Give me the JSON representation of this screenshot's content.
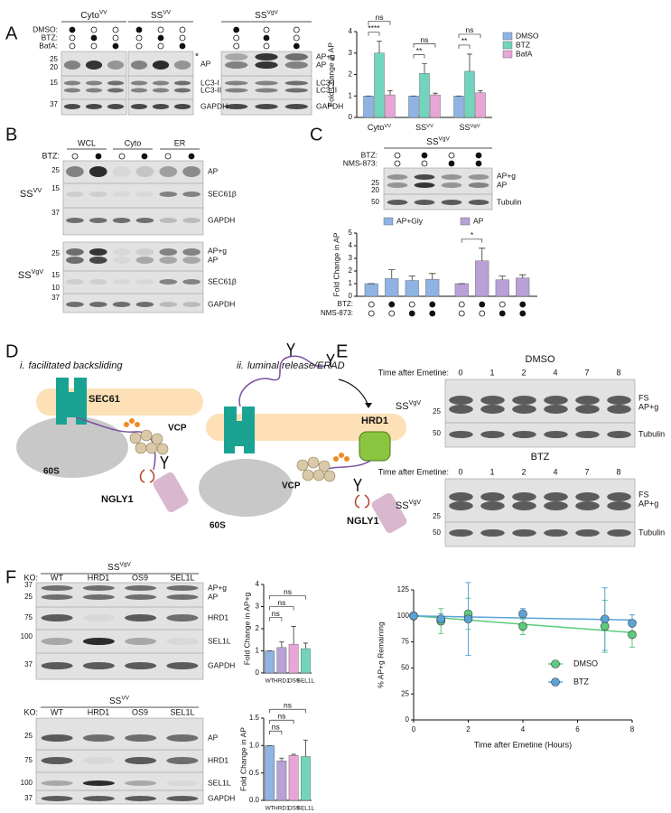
{
  "panel_labels": [
    "A",
    "B",
    "C",
    "D",
    "E",
    "F"
  ],
  "panel_a": {
    "groups": [
      {
        "name": "Cyto",
        "sup": "VV"
      },
      {
        "name": "SS",
        "sup": "VV"
      },
      {
        "name": "SS",
        "sup": "VgV"
      }
    ],
    "treatments": [
      {
        "label": "DMSO:",
        "on": [
          true,
          false,
          false,
          true,
          false,
          false,
          true,
          false,
          false
        ]
      },
      {
        "label": "BTZ:",
        "on": [
          false,
          true,
          false,
          false,
          true,
          false,
          false,
          true,
          false
        ]
      },
      {
        "label": "BafA:",
        "on": [
          false,
          false,
          true,
          false,
          false,
          true,
          false,
          false,
          true
        ]
      }
    ],
    "mw": [
      "25",
      "20",
      "15",
      "37"
    ],
    "star": "*",
    "bands_left": [
      "AP",
      "LC3-I",
      "LC3-II",
      "GAPDH"
    ],
    "bands_right": [
      "AP+g",
      "AP",
      "LC3-I",
      "LC3-II",
      "GAPDH"
    ]
  },
  "panel_b": {
    "fractions": [
      "WCL",
      "Cyto",
      "ER"
    ],
    "treatment": {
      "label": "BTZ:",
      "on": [
        false,
        true,
        false,
        true,
        false,
        true
      ]
    },
    "blots": [
      {
        "name": "SS",
        "sup": "VV",
        "mw": [
          "25",
          "15",
          "37"
        ],
        "bands": [
          "AP",
          "SEC61β",
          "GAPDH"
        ]
      },
      {
        "name": "SS",
        "sup": "VgV",
        "mw": [
          "25",
          "15",
          "10",
          "37"
        ],
        "bands": [
          "AP+g",
          "AP",
          "SEC61β",
          "GAPDH"
        ]
      }
    ]
  },
  "panel_c": {
    "title": {
      "name": "SS",
      "sup": "VgV"
    },
    "treatments": [
      {
        "label": "BTZ:",
        "on": [
          false,
          true,
          false,
          true
        ]
      },
      {
        "label": "NMS-873:",
        "on": [
          false,
          false,
          true,
          true
        ]
      }
    ],
    "mw": [
      "25",
      "20",
      "50"
    ],
    "bands": [
      "AP+g",
      "AP",
      "Tubulin"
    ]
  },
  "panel_d": {
    "titles": [
      {
        "num": "i.",
        "text": "facilitated backsliding"
      },
      {
        "num": "ii.",
        "text": "luminal release/ERAD"
      }
    ],
    "left": {
      "channel": "SEC61",
      "vcp": "VCP",
      "ribosome": "60S",
      "enzyme": "NGLY1"
    },
    "right": {
      "ligase": "HRD1",
      "vcp": "VCP",
      "ribosome": "60S",
      "enzyme": "NGLY1"
    }
  },
  "panel_e": {
    "blots": [
      {
        "condition": "DMSO",
        "time_label": "Time after Emetine:",
        "times": [
          "0",
          "1",
          "2",
          "4",
          "7",
          "8"
        ],
        "mw": [
          "25",
          "50"
        ],
        "bands": [
          "FS",
          "AP+g",
          "Tubulin"
        ],
        "sample": {
          "name": "SS",
          "sup": "VgV"
        }
      },
      {
        "condition": "BTZ",
        "time_label": "Time after Emetine:",
        "times": [
          "0",
          "1",
          "2",
          "4",
          "7",
          "8"
        ],
        "mw": [
          "25",
          "50"
        ],
        "bands": [
          "FS",
          "AP+g",
          "Tubulin"
        ],
        "sample": {
          "name": "SS",
          "sup": "VgV"
        }
      }
    ]
  },
  "panel_f": {
    "blots": [
      {
        "title": {
          "name": "SS",
          "sup": "VgV"
        },
        "ko_label": "KO:",
        "lanes": [
          "WT",
          "HRD1",
          "OS9",
          "SEL1L"
        ],
        "mw": [
          "37",
          "25",
          "75",
          "100",
          "37"
        ],
        "bands": [
          "AP+g",
          "AP",
          "HRD1",
          "SEL1L",
          "GAPDH"
        ]
      },
      {
        "title": {
          "name": "SS",
          "sup": "VV"
        },
        "ko_label": "KO:",
        "lanes": [
          "WT",
          "HRD1",
          "OS9",
          "SEL1L"
        ],
        "mw": [
          "25",
          "75",
          "100",
          "37"
        ],
        "bands": [
          "AP",
          "HRD1",
          "SEL1L",
          "GAPDH"
        ]
      }
    ]
  },
  "chart_data": [
    {
      "type": "bar",
      "ylabel": "Fold Change in AP",
      "categories": [
        "Cyto",
        "SS",
        "SS"
      ],
      "category_superscripts": [
        "VV",
        "VV",
        "VgV"
      ],
      "series": [
        {
          "name": "DMSO",
          "color": "#8fb4e3",
          "values": [
            1,
            1,
            1
          ],
          "errors": [
            0,
            0,
            0
          ]
        },
        {
          "name": "BTZ",
          "color": "#72d4bc",
          "values": [
            3.0,
            2.05,
            2.15
          ],
          "errors": [
            0.55,
            0.45,
            0.8
          ],
          "significance": [
            "****",
            "**",
            "**"
          ]
        },
        {
          "name": "BafA",
          "color": "#e7a6d6",
          "values": [
            1.05,
            1.05,
            1.15
          ],
          "errors": [
            0.2,
            0.08,
            0.1
          ],
          "significance": [
            "ns",
            "ns",
            "ns"
          ]
        }
      ],
      "ylim": [
        0,
        4
      ],
      "yticks": [
        0,
        1,
        2,
        3,
        4
      ],
      "legend": "right"
    },
    {
      "type": "bar",
      "ylabel": "Fold Change in AP",
      "series": [
        {
          "name": "AP+Gly",
          "color": "#8fb4e3",
          "values": [
            1,
            1.4,
            1.25,
            1.35
          ],
          "errors": [
            0,
            0.7,
            0.35,
            0.45
          ]
        },
        {
          "name": "AP",
          "color": "#b9a0d6",
          "values": [
            1,
            2.8,
            1.3,
            1.45
          ],
          "errors": [
            0,
            1.0,
            0.3,
            0.25
          ],
          "significance": [
            null,
            "*",
            null,
            null
          ]
        }
      ],
      "treatments": [
        {
          "label": "BTZ:",
          "on": [
            false,
            true,
            false,
            true,
            false,
            true,
            false,
            true
          ]
        },
        {
          "label": "NMS-873:",
          "on": [
            false,
            false,
            true,
            true,
            false,
            false,
            true,
            true
          ]
        }
      ],
      "ylim": [
        0,
        5
      ],
      "yticks": [
        0,
        1,
        2,
        3,
        4,
        5
      ],
      "legend": "top"
    },
    {
      "type": "scatter",
      "xlabel": "Time after Emetine (Hours)",
      "ylabel": "% AP+g Remaining",
      "x": [
        0,
        1,
        2,
        4,
        7,
        8
      ],
      "series": [
        {
          "name": "DMSO",
          "color": "#5ccc7c",
          "values": [
            100,
            95,
            102,
            90,
            90,
            82
          ],
          "errors": [
            0,
            12,
            15,
            8,
            25,
            12
          ],
          "fit": [
            100,
            84
          ]
        },
        {
          "name": "BTZ",
          "color": "#5aa3d8",
          "values": [
            100,
            97,
            97,
            102,
            97,
            93
          ],
          "errors": [
            0,
            5,
            35,
            5,
            30,
            8
          ],
          "fit": [
            100,
            96
          ]
        }
      ],
      "xlim": [
        0,
        8
      ],
      "xticks": [
        0,
        2,
        4,
        6,
        8
      ],
      "ylim": [
        0,
        125
      ],
      "yticks": [
        0,
        25,
        50,
        75,
        100,
        125
      ],
      "legend": "inside"
    },
    {
      "type": "bar",
      "ylabel": "Fold Change in AP+g",
      "categories": [
        "WT",
        "HRD1",
        "OS9",
        "SEL1L"
      ],
      "colors": [
        "#8fb4e3",
        "#b9a0d6",
        "#e7a6d6",
        "#72d4bc"
      ],
      "values": [
        1,
        1.15,
        1.3,
        1.1
      ],
      "errors": [
        0,
        0.25,
        0.8,
        0.25
      ],
      "significance": [
        null,
        "ns",
        "ns",
        "ns"
      ],
      "ylim": [
        0,
        4
      ],
      "yticks": [
        0,
        1,
        2,
        3,
        4
      ]
    },
    {
      "type": "bar",
      "ylabel": "Fold Change in AP",
      "categories": [
        "WT",
        "HRD1",
        "OS9",
        "SEL1L"
      ],
      "colors": [
        "#8fb4e3",
        "#b9a0d6",
        "#e7a6d6",
        "#72d4bc"
      ],
      "values": [
        1,
        0.72,
        0.82,
        0.8
      ],
      "errors": [
        0,
        0.05,
        0.02,
        0.3
      ],
      "significance": [
        null,
        "ns",
        "ns",
        "ns"
      ],
      "ylim": [
        0,
        1.5
      ],
      "yticks": [
        {
          "value": 0,
          "label": "0.0"
        },
        0.5,
        {
          "value": 1,
          "label": "1.0"
        },
        1.5
      ]
    }
  ]
}
